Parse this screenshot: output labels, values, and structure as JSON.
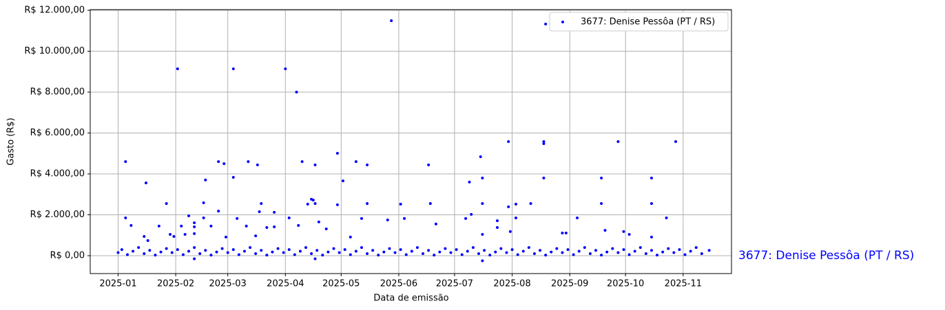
{
  "chart_data": {
    "type": "scatter",
    "ylabel": "Gasto (R$)",
    "xlabel": "Data de emissão",
    "annotation": "3677: Denise Pessôa (PT / RS)",
    "legend": "upper right",
    "grid": true,
    "xlim": [
      -15,
      330
    ],
    "ylim": [
      -874,
      12034
    ],
    "xticks": [
      {
        "value": 0,
        "label": "2025-01"
      },
      {
        "value": 31,
        "label": "2025-02"
      },
      {
        "value": 59,
        "label": "2025-03"
      },
      {
        "value": 90,
        "label": "2025-04"
      },
      {
        "value": 120,
        "label": "2025-05"
      },
      {
        "value": 151,
        "label": "2025-06"
      },
      {
        "value": 181,
        "label": "2025-07"
      },
      {
        "value": 212,
        "label": "2025-08"
      },
      {
        "value": 243,
        "label": "2025-09"
      },
      {
        "value": 273,
        "label": "2025-10"
      },
      {
        "value": 304,
        "label": "2025-11"
      }
    ],
    "yticks": [
      {
        "value": 0,
        "label": "R$ 0,00"
      },
      {
        "value": 2000,
        "label": "R$ 2.000,00"
      },
      {
        "value": 4000,
        "label": "R$ 4.000,00"
      },
      {
        "value": 6000,
        "label": "R$ 6.000,00"
      },
      {
        "value": 8000,
        "label": "R$ 8.000,00"
      },
      {
        "value": 10000,
        "label": "R$ 10.000,00"
      },
      {
        "value": 12000,
        "label": "R$ 12.000,00"
      }
    ],
    "series": [
      {
        "name": "3677: Denise Pessôa (PT / RS)",
        "color": "#0000ff",
        "x": [
          4,
          4,
          7,
          15,
          14,
          16,
          22,
          26,
          28,
          30,
          32,
          34,
          36,
          38,
          41,
          41,
          41,
          47,
          46,
          46,
          50,
          54,
          54,
          57,
          58,
          62,
          62,
          64,
          69,
          70,
          75,
          77,
          76,
          74,
          80,
          84,
          84,
          90,
          96,
          92,
          97,
          99,
          104,
          105,
          106,
          106,
          102,
          108,
          112,
          118,
          118,
          121,
          125,
          128,
          131,
          134,
          134,
          147,
          145,
          152,
          154,
          167,
          168,
          171,
          187,
          189,
          190,
          195,
          196,
          196,
          196,
          204,
          204,
          210,
          210,
          211,
          214,
          214,
          222,
          229,
          229,
          229,
          230,
          239,
          241,
          247,
          260,
          260,
          262,
          269,
          272,
          275,
          287,
          287,
          287,
          295,
          300,
          0,
          2,
          5,
          8,
          11,
          14,
          17,
          20,
          23,
          26,
          29,
          32,
          35,
          38,
          41,
          44,
          47,
          50,
          53,
          56,
          59,
          62,
          65,
          68,
          71,
          74,
          77,
          80,
          83,
          86,
          89,
          92,
          95,
          98,
          101,
          104,
          107,
          110,
          113,
          116,
          119,
          122,
          125,
          128,
          131,
          134,
          137,
          140,
          143,
          146,
          149,
          152,
          155,
          158,
          161,
          164,
          167,
          170,
          173,
          176,
          179,
          182,
          185,
          188,
          191,
          194,
          197,
          200,
          203,
          206,
          209,
          212,
          215,
          218,
          221,
          224,
          227,
          230,
          233,
          236,
          239,
          242,
          245,
          248,
          251,
          254,
          257,
          260,
          263,
          266,
          269,
          272,
          275,
          278,
          281,
          284,
          287,
          290,
          293,
          296,
          299,
          302,
          305,
          308,
          311,
          314,
          318,
          41,
          106,
          196
        ],
        "values": [
          4600,
          1850,
          1480,
          3560,
          940,
          740,
          1450,
          2550,
          1040,
          940,
          9140,
          1450,
          1040,
          1950,
          1610,
          1410,
          1080,
          3700,
          2590,
          1850,
          1450,
          4600,
          2180,
          4500,
          910,
          9140,
          3830,
          1820,
          1450,
          4600,
          4440,
          2550,
          2150,
          970,
          1380,
          1410,
          2120,
          9140,
          8000,
          1850,
          1480,
          4600,
          2760,
          2720,
          2550,
          4440,
          2520,
          1650,
          1310,
          5010,
          2490,
          3660,
          910,
          4600,
          1820,
          4440,
          2550,
          11490,
          1750,
          2520,
          1820,
          4440,
          2550,
          1550,
          1820,
          3600,
          2020,
          4840,
          2550,
          3800,
          1040,
          1710,
          1380,
          2390,
          5580,
          1180,
          2520,
          1850,
          2550,
          5580,
          5480,
          3800,
          11330,
          1110,
          1110,
          1850,
          3800,
          2550,
          1240,
          5580,
          1180,
          1040,
          3800,
          2550,
          910,
          1850,
          5580,
          150,
          300,
          50,
          220,
          400,
          100,
          260,
          30,
          180,
          350,
          150,
          300,
          50,
          220,
          400,
          100,
          260,
          30,
          180,
          350,
          150,
          300,
          50,
          220,
          400,
          100,
          260,
          30,
          180,
          350,
          150,
          300,
          50,
          220,
          400,
          100,
          260,
          30,
          180,
          350,
          150,
          300,
          50,
          220,
          400,
          100,
          260,
          30,
          180,
          350,
          150,
          300,
          50,
          220,
          400,
          100,
          260,
          30,
          180,
          350,
          150,
          300,
          50,
          220,
          400,
          100,
          260,
          30,
          180,
          350,
          150,
          300,
          50,
          220,
          400,
          100,
          260,
          30,
          180,
          350,
          150,
          300,
          50,
          220,
          400,
          100,
          260,
          30,
          180,
          350,
          150,
          300,
          50,
          220,
          400,
          100,
          260,
          30,
          180,
          350,
          150,
          300,
          50,
          220,
          400,
          100,
          260,
          -150,
          -150,
          -250
        ]
      }
    ]
  }
}
